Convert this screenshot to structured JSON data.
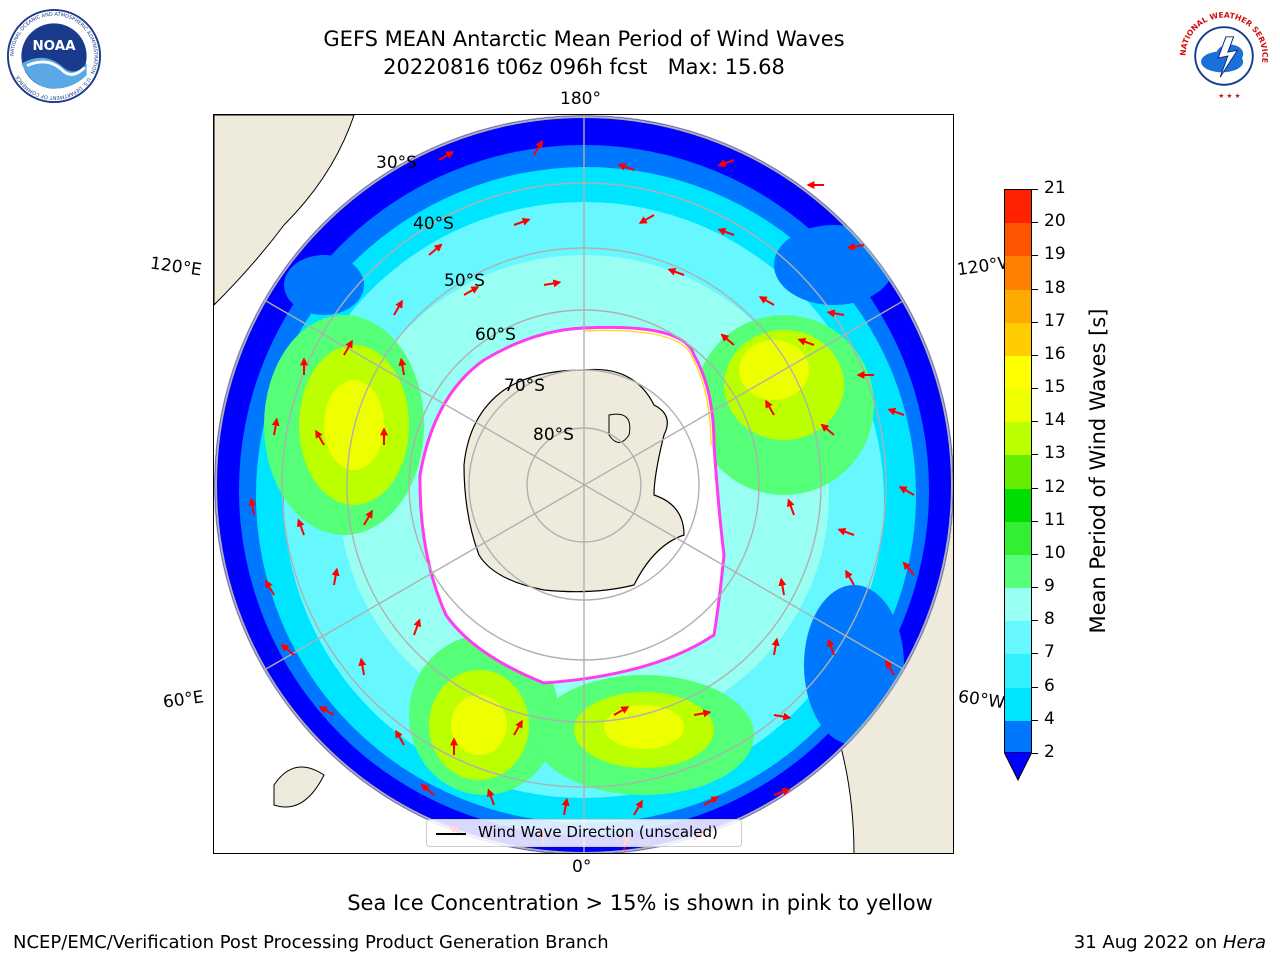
{
  "header": {
    "title_line1": "GEFS MEAN Antarctic Mean Period of Wind Waves",
    "title_line2": "20220816 t06z 096h fcst   Max: 15.68",
    "noaa_logo_text": "NOAA",
    "noaa_logo_ring_text": "NATIONAL OCEANIC AND ATMOSPHERIC ADMINISTRATION · U.S. DEPARTMENT OF COMMERCE",
    "nws_logo_ring_text": "NATIONAL WEATHER SERVICE"
  },
  "map": {
    "projection": "south-polar-stereographic",
    "longitude_labels": {
      "top": "180°",
      "bottom": "0°",
      "left_upper": "120°E",
      "left_lower": "60°E",
      "right_upper": "120°W",
      "right_lower": "60°W"
    },
    "latitude_labels": [
      "30°S",
      "40°S",
      "50°S",
      "60°S",
      "70°S",
      "80°S"
    ],
    "colors": {
      "land": "#efebdc",
      "ice_sea": "#ffffff",
      "graticule": "#b0b0b0",
      "arrow": "#ff0000",
      "ice_edge_pink": "#ff3cf0",
      "ice_edge_yellow": "#ffd700"
    }
  },
  "colorbar": {
    "label": "Mean Period of Wind Waves [s]",
    "levels": [
      2,
      4,
      6,
      7,
      8,
      9,
      10,
      11,
      12,
      13,
      14,
      15,
      16,
      17,
      18,
      19,
      20,
      21
    ],
    "tick_labels": [
      "2",
      "4",
      "6",
      "7",
      "8",
      "9",
      "10",
      "11",
      "12",
      "13",
      "14",
      "15",
      "16",
      "17",
      "18",
      "19",
      "20",
      "21"
    ],
    "colors": [
      "#0077ff",
      "#00e5ff",
      "#33f0ff",
      "#66f7ff",
      "#99fff2",
      "#55ff77",
      "#33ee33",
      "#00dd00",
      "#66ee00",
      "#bbff00",
      "#eeff00",
      "#ffff00",
      "#ffcc00",
      "#ffaa00",
      "#ff8000",
      "#ff5500",
      "#ff2200"
    ],
    "extend_below_color": "#0000ff"
  },
  "legend": {
    "label": "Wind Wave Direction (unscaled)"
  },
  "note": "Sea Ice Concentration > 15% is shown in pink to yellow",
  "footer": {
    "left": "NCEP/EMC/Verification Post Processing Product Generation Branch",
    "right_date": "31 Aug 2022 on ",
    "right_host": "Hera"
  }
}
